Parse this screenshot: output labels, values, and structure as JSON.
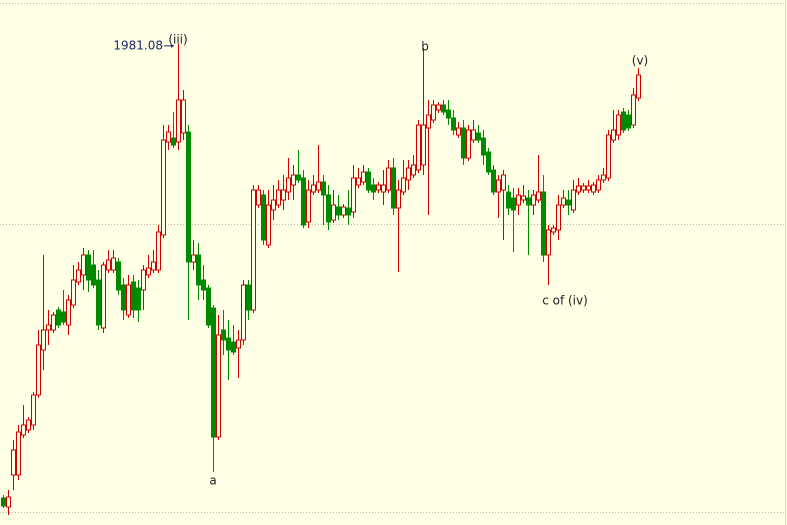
{
  "chart_data": {
    "type": "candlestick",
    "up_color": "#d20000",
    "down_color": "#008a00",
    "background": "#ffffe6",
    "ylim": [
      1740.5,
      2003
    ],
    "annotations": [
      "1981.08",
      "(iii)",
      "a",
      "b",
      "c of (iv)",
      "(v)"
    ],
    "open": [
      1754,
      1749.5,
      1765.5,
      1765.5,
      1785.5,
      1788,
      1790.5,
      1805.5,
      1828,
      1838,
      1838,
      1848,
      1847,
      1840.5,
      1850.5,
      1862,
      1865.5,
      1875.5,
      1870.5,
      1863,
      1839,
      1868,
      1868,
      1872,
      1860.5,
      1845.5,
      1862,
      1859,
      1858,
      1865.5,
      1868,
      1868,
      1885.5,
      1932,
      1934,
      1932,
      1936.5,
      1937,
      1872,
      1875.5,
      1863,
      1859,
      1849,
      1784.5,
      1838,
      1834,
      1832,
      1829,
      1833,
      1860.5,
      1848,
      1900.5,
      1905.5,
      1880.5,
      1898,
      1900.5,
      1903,
      1907,
      1910.5,
      1915.5,
      1914,
      1892,
      1907,
      1908,
      1912,
      1905.5,
      1893,
      1899.5,
      1895.5,
      1899,
      1897,
      1910.5,
      1912,
      1917,
      1910.5,
      1908,
      1907,
      1908,
      1919,
      1899,
      1907,
      1913,
      1915.5,
      1918,
      1920.5,
      1939,
      1943,
      1948,
      1950.5,
      1948,
      1944,
      1935.5,
      1939,
      1924,
      1933,
      1936.5,
      1934,
      1927,
      1918,
      1907,
      1908,
      1907,
      1904,
      1900.5,
      1903,
      1904,
      1900.5,
      1903,
      1907,
      1875.5,
      1887,
      1888,
      1900.5,
      1903,
      1898,
      1907,
      1908,
      1908,
      1907,
      1908,
      1913,
      1914,
      1933,
      1935.5,
      1947,
      1945.5,
      1940.5,
      1954
    ],
    "high": [
      1755.5,
      1758,
      1783,
      1790.5,
      1800.5,
      1794.5,
      1807,
      1838,
      1875.5,
      1848,
      1847,
      1849.5,
      1858,
      1855.5,
      1870.5,
      1872,
      1879,
      1878,
      1878,
      1868,
      1872,
      1878,
      1878,
      1874,
      1864,
      1865.5,
      1865.5,
      1863,
      1870.5,
      1875.5,
      1878,
      1890.5,
      1940.5,
      1940.5,
      1947,
      1981.08,
      1958,
      1940.5,
      1883,
      1881.5,
      1870.5,
      1860.5,
      1850.5,
      1845.5,
      1848,
      1843,
      1840.5,
      1838,
      1863,
      1863,
      1910.5,
      1910.5,
      1908,
      1908,
      1910.5,
      1913,
      1915.5,
      1924,
      1920.5,
      1928,
      1918,
      1913,
      1915.5,
      1930.5,
      1915.5,
      1910.5,
      1908,
      1905.5,
      1901,
      1908,
      1920.5,
      1919,
      1920.5,
      1919,
      1914,
      1912,
      1918,
      1923,
      1924,
      1913,
      1923,
      1923,
      1925.5,
      1943,
      1979,
      1953,
      1953,
      1952,
      1953,
      1953,
      1948,
      1942,
      1943,
      1940.5,
      1943,
      1940.5,
      1938,
      1929,
      1920.5,
      1915.5,
      1918,
      1910.5,
      1909,
      1909,
      1910.5,
      1908,
      1908,
      1925.5,
      1915.5,
      1890.5,
      1890.5,
      1905.5,
      1908,
      1908,
      1913,
      1914,
      1911.5,
      1913,
      1912,
      1915.5,
      1919,
      1938,
      1948,
      1948,
      1949,
      1948,
      1959,
      1969
    ],
    "low": [
      1749,
      1745.5,
      1758,
      1763,
      1784,
      1786.5,
      1788,
      1804,
      1818,
      1830.5,
      1836.5,
      1839,
      1840.5,
      1835.5,
      1849,
      1860.5,
      1858,
      1857,
      1859,
      1838,
      1836.5,
      1866.5,
      1866.5,
      1855.5,
      1843,
      1844,
      1844,
      1842,
      1848,
      1864,
      1866.5,
      1866.5,
      1884,
      1928,
      1929,
      1928,
      1933,
      1843,
      1868,
      1853,
      1853,
      1839,
      1767,
      1783,
      1825.5,
      1813,
      1825.5,
      1814,
      1830.5,
      1843,
      1846.5,
      1899,
      1880.5,
      1879,
      1893,
      1899,
      1898,
      1903,
      1903,
      1911.5,
      1889,
      1889,
      1905.5,
      1906.5,
      1890.5,
      1888,
      1891.5,
      1893,
      1894,
      1890.5,
      1894,
      1909,
      1910.5,
      1906.5,
      1903,
      1906.5,
      1900.5,
      1906.5,
      1895.5,
      1867,
      1905.5,
      1908,
      1914,
      1916.5,
      1915.5,
      1895.5,
      1941.5,
      1946.5,
      1945.5,
      1940.5,
      1935.5,
      1934,
      1920.5,
      1922.5,
      1931.5,
      1931.5,
      1920.5,
      1915.5,
      1905.5,
      1894,
      1883,
      1895.5,
      1877,
      1895.5,
      1901.5,
      1875.5,
      1895.5,
      1901.5,
      1872,
      1860.5,
      1885.5,
      1883,
      1899,
      1895.5,
      1896.5,
      1905.5,
      1906.5,
      1906.5,
      1905.5,
      1906.5,
      1911.5,
      1912.5,
      1931.5,
      1933,
      1936.5,
      1937.5,
      1939,
      1952.5
    ],
    "close": [
      1750,
      1754.5,
      1778,
      1787,
      1790.5,
      1793,
      1805.5,
      1830.5,
      1838,
      1840.5,
      1845.5,
      1840.5,
      1842,
      1853,
      1863,
      1868,
      1875.5,
      1863,
      1860.5,
      1840.5,
      1870.5,
      1873,
      1874,
      1858,
      1848,
      1860.5,
      1848,
      1848,
      1868,
      1869,
      1872,
      1887,
      1933,
      1937,
      1930.5,
      1953,
      1953,
      1872,
      1875.5,
      1860.5,
      1858,
      1840.5,
      1784.5,
      1835.5,
      1833,
      1828,
      1827,
      1833,
      1860.5,
      1848,
      1908,
      1908,
      1883,
      1900.5,
      1903,
      1908,
      1908,
      1914,
      1915.5,
      1913,
      1890.5,
      1908,
      1910.5,
      1912,
      1905.5,
      1892,
      1900.5,
      1895.5,
      1899.5,
      1895.5,
      1914,
      1914,
      1917,
      1908,
      1907,
      1910.5,
      1910.5,
      1919,
      1899,
      1908,
      1914,
      1919,
      1920.5,
      1940.5,
      1940.5,
      1945.5,
      1950.5,
      1950.5,
      1947,
      1944,
      1938,
      1939,
      1924,
      1938,
      1938,
      1933,
      1925.5,
      1917,
      1907,
      1913,
      1915.5,
      1899,
      1898,
      1905.5,
      1905,
      1900.5,
      1905.5,
      1907,
      1875.5,
      1888,
      1889,
      1900.5,
      1904,
      1900.5,
      1908,
      1910,
      1910,
      1910,
      1910.5,
      1913,
      1915.5,
      1935.5,
      1938,
      1945.5,
      1938,
      1939,
      1955.5,
      1965.5
    ]
  }
}
